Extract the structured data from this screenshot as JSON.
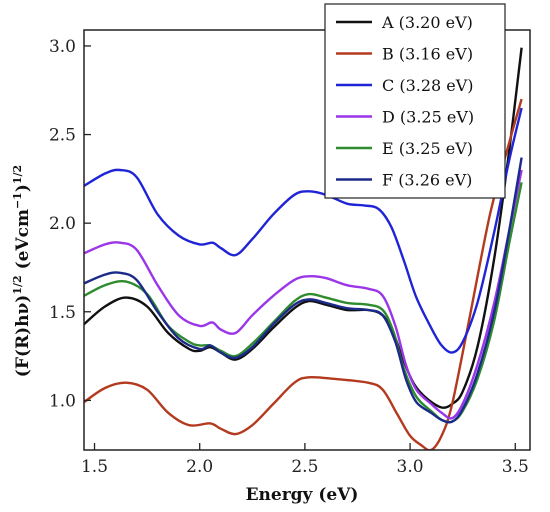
{
  "chart_data": {
    "type": "line",
    "xlabel": "Energy (eV)",
    "ylabel_main": "(F(R)hν)",
    "ylabel_sup1": "1/2",
    "ylabel_units": " (eVcm",
    "ylabel_sup2": "−1",
    "ylabel_close": ")",
    "ylabel_sup3": "1/2",
    "xlim": [
      1.45,
      3.57
    ],
    "ylim": [
      0.72,
      3.09
    ],
    "xticks": [
      1.5,
      2.0,
      2.5,
      3.0,
      3.5
    ],
    "xtick_labels": [
      "1.5",
      "2.0",
      "2.5",
      "3.0",
      "3.5"
    ],
    "yticks": [
      1.0,
      1.5,
      2.0,
      2.5,
      3.0
    ],
    "ytick_labels": [
      "1.0",
      "1.5",
      "2.0",
      "2.5",
      "3.0"
    ],
    "grid": false,
    "legend_position": "top-right",
    "series": [
      {
        "name": "A (3.20 eV)",
        "color": "#111111",
        "points": [
          [
            1.45,
            1.43
          ],
          [
            1.55,
            1.53
          ],
          [
            1.65,
            1.58
          ],
          [
            1.75,
            1.53
          ],
          [
            1.85,
            1.38
          ],
          [
            1.95,
            1.29
          ],
          [
            2.0,
            1.28
          ],
          [
            2.05,
            1.3
          ],
          [
            2.1,
            1.27
          ],
          [
            2.17,
            1.23
          ],
          [
            2.25,
            1.29
          ],
          [
            2.35,
            1.41
          ],
          [
            2.45,
            1.52
          ],
          [
            2.52,
            1.56
          ],
          [
            2.6,
            1.54
          ],
          [
            2.7,
            1.51
          ],
          [
            2.8,
            1.51
          ],
          [
            2.87,
            1.48
          ],
          [
            2.92,
            1.38
          ],
          [
            2.97,
            1.22
          ],
          [
            3.02,
            1.09
          ],
          [
            3.08,
            1.01
          ],
          [
            3.15,
            0.96
          ],
          [
            3.2,
            0.98
          ],
          [
            3.25,
            1.05
          ],
          [
            3.32,
            1.3
          ],
          [
            3.4,
            1.8
          ],
          [
            3.47,
            2.4
          ],
          [
            3.53,
            2.99
          ]
        ]
      },
      {
        "name": "B (3.16 eV)",
        "color": "#b33a1f",
        "points": [
          [
            1.45,
            0.99
          ],
          [
            1.55,
            1.07
          ],
          [
            1.65,
            1.1
          ],
          [
            1.75,
            1.06
          ],
          [
            1.85,
            0.93
          ],
          [
            1.95,
            0.86
          ],
          [
            2.05,
            0.87
          ],
          [
            2.1,
            0.84
          ],
          [
            2.17,
            0.81
          ],
          [
            2.25,
            0.86
          ],
          [
            2.35,
            0.98
          ],
          [
            2.45,
            1.1
          ],
          [
            2.52,
            1.13
          ],
          [
            2.65,
            1.12
          ],
          [
            2.8,
            1.1
          ],
          [
            2.87,
            1.06
          ],
          [
            2.94,
            0.92
          ],
          [
            3.0,
            0.8
          ],
          [
            3.05,
            0.75
          ],
          [
            3.1,
            0.72
          ],
          [
            3.15,
            0.8
          ],
          [
            3.2,
            0.98
          ],
          [
            3.28,
            1.45
          ],
          [
            3.38,
            2.05
          ],
          [
            3.47,
            2.45
          ],
          [
            3.53,
            2.7
          ]
        ]
      },
      {
        "name": "C (3.28 eV)",
        "color": "#1f24d6",
        "points": [
          [
            1.45,
            2.21
          ],
          [
            1.55,
            2.28
          ],
          [
            1.62,
            2.3
          ],
          [
            1.7,
            2.26
          ],
          [
            1.8,
            2.05
          ],
          [
            1.9,
            1.93
          ],
          [
            2.0,
            1.88
          ],
          [
            2.06,
            1.89
          ],
          [
            2.1,
            1.86
          ],
          [
            2.17,
            1.82
          ],
          [
            2.25,
            1.91
          ],
          [
            2.35,
            2.05
          ],
          [
            2.45,
            2.16
          ],
          [
            2.52,
            2.18
          ],
          [
            2.6,
            2.16
          ],
          [
            2.7,
            2.11
          ],
          [
            2.78,
            2.1
          ],
          [
            2.85,
            2.08
          ],
          [
            2.91,
            1.98
          ],
          [
            2.97,
            1.79
          ],
          [
            3.03,
            1.58
          ],
          [
            3.1,
            1.41
          ],
          [
            3.15,
            1.31
          ],
          [
            3.2,
            1.27
          ],
          [
            3.25,
            1.33
          ],
          [
            3.32,
            1.55
          ],
          [
            3.4,
            1.95
          ],
          [
            3.47,
            2.35
          ],
          [
            3.53,
            2.65
          ]
        ]
      },
      {
        "name": "D (3.25 eV)",
        "color": "#9b35e8",
        "points": [
          [
            1.45,
            1.83
          ],
          [
            1.55,
            1.88
          ],
          [
            1.62,
            1.89
          ],
          [
            1.7,
            1.85
          ],
          [
            1.8,
            1.65
          ],
          [
            1.9,
            1.48
          ],
          [
            2.0,
            1.42
          ],
          [
            2.06,
            1.44
          ],
          [
            2.1,
            1.4
          ],
          [
            2.17,
            1.38
          ],
          [
            2.25,
            1.48
          ],
          [
            2.35,
            1.59
          ],
          [
            2.45,
            1.68
          ],
          [
            2.52,
            1.7
          ],
          [
            2.6,
            1.69
          ],
          [
            2.7,
            1.65
          ],
          [
            2.8,
            1.63
          ],
          [
            2.87,
            1.59
          ],
          [
            2.93,
            1.42
          ],
          [
            2.98,
            1.2
          ],
          [
            3.03,
            1.06
          ],
          [
            3.1,
            0.98
          ],
          [
            3.15,
            0.93
          ],
          [
            3.2,
            0.9
          ],
          [
            3.25,
            0.98
          ],
          [
            3.32,
            1.2
          ],
          [
            3.4,
            1.55
          ],
          [
            3.47,
            1.95
          ],
          [
            3.53,
            2.3
          ]
        ]
      },
      {
        "name": "E (3.25 eV)",
        "color": "#2e8b2e",
        "points": [
          [
            1.45,
            1.59
          ],
          [
            1.55,
            1.65
          ],
          [
            1.65,
            1.67
          ],
          [
            1.75,
            1.6
          ],
          [
            1.85,
            1.42
          ],
          [
            1.95,
            1.33
          ],
          [
            2.0,
            1.31
          ],
          [
            2.05,
            1.31
          ],
          [
            2.1,
            1.28
          ],
          [
            2.17,
            1.25
          ],
          [
            2.25,
            1.32
          ],
          [
            2.35,
            1.44
          ],
          [
            2.45,
            1.56
          ],
          [
            2.52,
            1.6
          ],
          [
            2.6,
            1.58
          ],
          [
            2.7,
            1.55
          ],
          [
            2.8,
            1.54
          ],
          [
            2.87,
            1.51
          ],
          [
            2.92,
            1.39
          ],
          [
            2.97,
            1.18
          ],
          [
            3.03,
            1.02
          ],
          [
            3.1,
            0.94
          ],
          [
            3.15,
            0.89
          ],
          [
            3.2,
            0.88
          ],
          [
            3.25,
            0.94
          ],
          [
            3.32,
            1.12
          ],
          [
            3.4,
            1.45
          ],
          [
            3.47,
            1.88
          ],
          [
            3.53,
            2.23
          ]
        ]
      },
      {
        "name": "F (3.26 eV)",
        "color": "#1c2a8a",
        "points": [
          [
            1.45,
            1.66
          ],
          [
            1.55,
            1.71
          ],
          [
            1.62,
            1.72
          ],
          [
            1.7,
            1.68
          ],
          [
            1.8,
            1.5
          ],
          [
            1.9,
            1.35
          ],
          [
            2.0,
            1.29
          ],
          [
            2.05,
            1.31
          ],
          [
            2.1,
            1.27
          ],
          [
            2.17,
            1.24
          ],
          [
            2.25,
            1.3
          ],
          [
            2.35,
            1.43
          ],
          [
            2.45,
            1.54
          ],
          [
            2.52,
            1.57
          ],
          [
            2.6,
            1.55
          ],
          [
            2.7,
            1.52
          ],
          [
            2.8,
            1.51
          ],
          [
            2.87,
            1.48
          ],
          [
            2.93,
            1.33
          ],
          [
            2.98,
            1.12
          ],
          [
            3.03,
            0.99
          ],
          [
            3.1,
            0.93
          ],
          [
            3.15,
            0.89
          ],
          [
            3.2,
            0.88
          ],
          [
            3.25,
            0.95
          ],
          [
            3.32,
            1.15
          ],
          [
            3.4,
            1.5
          ],
          [
            3.47,
            1.95
          ],
          [
            3.53,
            2.37
          ]
        ]
      }
    ]
  }
}
